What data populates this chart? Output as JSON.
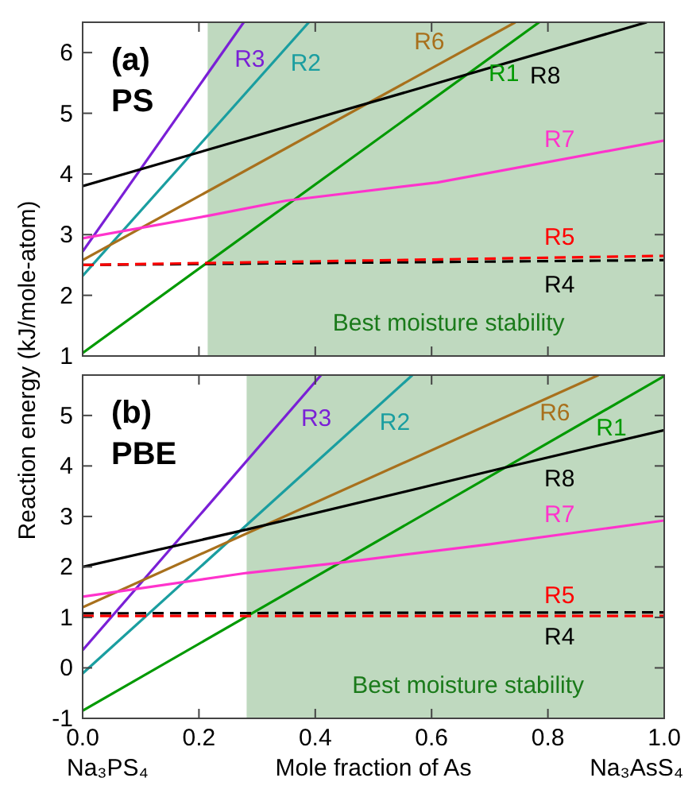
{
  "chart_data": [
    {
      "type": "line",
      "title": "(a)",
      "subtitle": "PS",
      "xlim": [
        0,
        1
      ],
      "ylim": [
        1,
        6.5
      ],
      "yticks": [
        1,
        2,
        3,
        4,
        5,
        6
      ],
      "xticks": [
        0,
        0.2,
        0.4,
        0.6,
        0.8,
        1
      ],
      "tick_labels": "y",
      "grid": false,
      "marker": "none",
      "bands": [
        {
          "axis": "x",
          "from": 0.215,
          "to": 1,
          "label": "Best moisture stability",
          "color": "#bfd9bf"
        }
      ],
      "series": [
        {
          "name": "R1",
          "color": "#009900",
          "x": [
            0,
            0.785
          ],
          "values": [
            1.05,
            6.5
          ]
        },
        {
          "name": "R2",
          "color": "#1a9ea0",
          "x": [
            0,
            0.389
          ],
          "values": [
            2.32,
            6.5
          ]
        },
        {
          "name": "R3",
          "color": "#7a1fd6",
          "x": [
            0,
            0.277
          ],
          "values": [
            2.72,
            6.5
          ]
        },
        {
          "name": "R6",
          "color": "#a8701c",
          "x": [
            0,
            0.744
          ],
          "values": [
            2.58,
            6.5
          ]
        },
        {
          "name": "R8",
          "color": "#000000",
          "x": [
            0,
            0.97
          ],
          "values": [
            3.8,
            6.5
          ]
        },
        {
          "name": "R7",
          "color": "#ff33cc",
          "x": [
            0,
            0.215,
            0.35,
            0.61,
            1
          ],
          "values": [
            2.94,
            3.31,
            3.56,
            3.86,
            4.55
          ]
        },
        {
          "name": "R4",
          "color": "#000000",
          "line_style": "dashed",
          "x": [
            0,
            1
          ],
          "values": [
            2.5,
            2.58
          ]
        },
        {
          "name": "R5",
          "color": "#ff0000",
          "line_style": "dashed",
          "x": [
            0,
            1
          ],
          "values": [
            2.5,
            2.65
          ]
        }
      ]
    },
    {
      "type": "line",
      "title": "(b)",
      "subtitle": "PBE",
      "xlabel": "Mole fraction of As",
      "ylabel": "Reaction energy (kJ/mole-atom)",
      "xlim": [
        0,
        1
      ],
      "ylim": [
        -1,
        5.8
      ],
      "yticks": [
        -1,
        0,
        1,
        2,
        3,
        4,
        5
      ],
      "xticks": [
        {
          "value": 0,
          "label": "0.0"
        },
        {
          "value": 0.2,
          "label": "0.2"
        },
        {
          "value": 0.4,
          "label": "0.4"
        },
        {
          "value": 0.6,
          "label": "0.6"
        },
        {
          "value": 0.8,
          "label": "0.8"
        },
        {
          "value": 1,
          "label": "1.0"
        }
      ],
      "grid": false,
      "marker": "none",
      "bands": [
        {
          "axis": "x",
          "from": 0.282,
          "to": 1,
          "label": "Best moisture stability",
          "color": "#bfd9bf"
        }
      ],
      "series": [
        {
          "name": "R1",
          "color": "#009900",
          "x": [
            0,
            1
          ],
          "values": [
            -0.85,
            5.78
          ]
        },
        {
          "name": "R2",
          "color": "#1a9ea0",
          "x": [
            0,
            0.567
          ],
          "values": [
            -0.11,
            5.8
          ]
        },
        {
          "name": "R3",
          "color": "#7a1fd6",
          "x": [
            0,
            0.41
          ],
          "values": [
            0.35,
            5.8
          ]
        },
        {
          "name": "R6",
          "color": "#a8701c",
          "x": [
            0,
            0.887
          ],
          "values": [
            1.2,
            5.8
          ]
        },
        {
          "name": "R8",
          "color": "#000000",
          "x": [
            0,
            0.282,
            0.72,
            1
          ],
          "values": [
            2,
            2.74,
            3.95,
            4.71
          ]
        },
        {
          "name": "R7",
          "color": "#ff33cc",
          "x": [
            0,
            0.282,
            0.44,
            0.7,
            1
          ],
          "values": [
            1.41,
            1.88,
            2.08,
            2.45,
            2.92
          ]
        },
        {
          "name": "R4",
          "color": "#000000",
          "line_style": "dashed",
          "x": [
            0,
            1
          ],
          "values": [
            1.08,
            1.1
          ]
        },
        {
          "name": "R5",
          "color": "#ff0000",
          "line_style": "dashed",
          "x": [
            0,
            1
          ],
          "values": [
            1.03,
            1.03
          ]
        }
      ],
      "annotations": [
        "Na₃PS₄",
        "Na₃AsS₄"
      ]
    }
  ]
}
